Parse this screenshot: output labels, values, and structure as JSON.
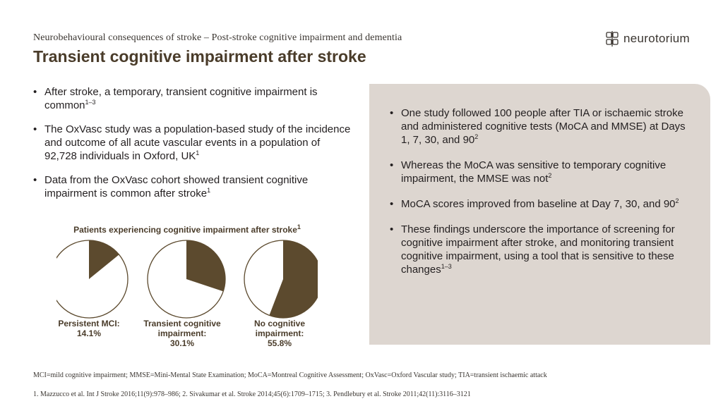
{
  "header": {
    "subtitle": "Neurobehavioural consequences of stroke – Post-stroke cognitive impairment and dementia",
    "title": "Transient cognitive impairment after stroke"
  },
  "logo": {
    "text": "neurotorium",
    "icon": "brain-grid-icon"
  },
  "left_bullets": [
    {
      "text": "After stroke, a temporary, transient cognitive impairment is common",
      "sup": "1–3"
    },
    {
      "text": "The OxVasc study was a population-based study of the incidence and outcome of all acute vascular events in a population of 92,728 individuals in Oxford, UK",
      "sup": "1"
    },
    {
      "text": "Data from the OxVasc cohort showed transient cognitive impairment is common after stroke",
      "sup": "1"
    }
  ],
  "right_bullets": [
    {
      "text": "One study followed 100 people after TIA or ischaemic stroke and administered cognitive tests (MoCA and MMSE) at Days 1, 7, 30, and 90",
      "sup": "2"
    },
    {
      "text": "Whereas the MoCA was sensitive to temporary cognitive impairment, the MMSE was not",
      "sup": "2"
    },
    {
      "text": "MoCA scores improved from baseline at Day 7, 30, and 90",
      "sup": "2"
    },
    {
      "text": "These findings underscore the importance of screening for cognitive impairment after stroke, and monitoring transient cognitive impairment, using a tool that is sensitive to these changes",
      "sup": "1–3"
    }
  ],
  "chart_data": {
    "type": "pie",
    "title": "Patients experiencing cognitive impairment after stroke",
    "title_sup": "1",
    "colors": {
      "fill": "#5c4a2e",
      "background": "#ffffff",
      "stroke": "#5c4a2e"
    },
    "series": [
      {
        "label_line1": "Persistent MCI:",
        "label_line2": "",
        "value_label": "14.1%",
        "value": 14.1
      },
      {
        "label_line1": "Transient cognitive",
        "label_line2": "impairment:",
        "value_label": "30.1%",
        "value": 30.1
      },
      {
        "label_line1": "No cognitive",
        "label_line2": "impairment:",
        "value_label": "55.8%",
        "value": 55.8
      }
    ]
  },
  "footnotes": {
    "abbreviations": "MCI=mild cognitive impairment; MMSE=Mini-Mental State Examination; MoCA=Montreal Cognitive Assessment; OxVasc=Oxford Vascular study; TIA=transient ischaemic attack",
    "references": "1. Mazzucco et al. Int J Stroke 2016;11(9):978–986; 2. Sivakumar et al. Stroke 2014;45(6):1709–1715; 3. Pendlebury et al. Stroke 2011;42(11):3116–3121"
  }
}
